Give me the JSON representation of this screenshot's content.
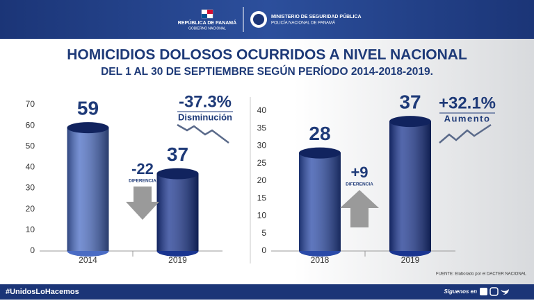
{
  "header": {
    "government": "REPÚBLICA DE PANAMÁ",
    "government_sub": "GOBIERNO NACIONAL",
    "ministry": "MINISTERIO DE SEGURIDAD PÚBLICA",
    "ministry_sub": "POLICÍA NACIONAL DE PANAMÁ"
  },
  "page": {
    "title": "HOMICIDIOS DOLOSOS OCURRIDOS A NIVEL NACIONAL",
    "subtitle": "DEL 1 AL 30 DE SEPTIEMBRE SEGÚN PERÍODO 2014-2018-2019."
  },
  "chart_data": [
    {
      "type": "bar",
      "categories": [
        "2014",
        "2019"
      ],
      "values": [
        59,
        37
      ],
      "colors": [
        "#4a6cc4",
        "#1a3590"
      ],
      "ylim": [
        0,
        70
      ],
      "yticks": [
        0,
        10,
        20,
        30,
        40,
        50,
        60,
        70
      ],
      "grid": false,
      "annotations": {
        "difference": "-22",
        "difference_label": "DIFERENCIA",
        "change": "-37.3%",
        "change_label": "Disminución",
        "direction": "down"
      }
    },
    {
      "type": "bar",
      "categories": [
        "2018",
        "2019"
      ],
      "values": [
        28,
        37
      ],
      "colors": [
        "#2a4aa8",
        "#1a3590"
      ],
      "ylim": [
        0,
        40
      ],
      "yticks": [
        0,
        5,
        10,
        15,
        20,
        25,
        30,
        35,
        40
      ],
      "grid": false,
      "annotations": {
        "difference": "+9",
        "difference_label": "DIFERENCIA",
        "change": "+32.1%",
        "change_label": "Aumento",
        "direction": "up"
      }
    }
  ],
  "source": "FUENTE: Elaborado por el DACTER NACIONAL",
  "footer": {
    "hashtag": "#UnidosLoHacemos",
    "follow": "Síguenos en"
  }
}
